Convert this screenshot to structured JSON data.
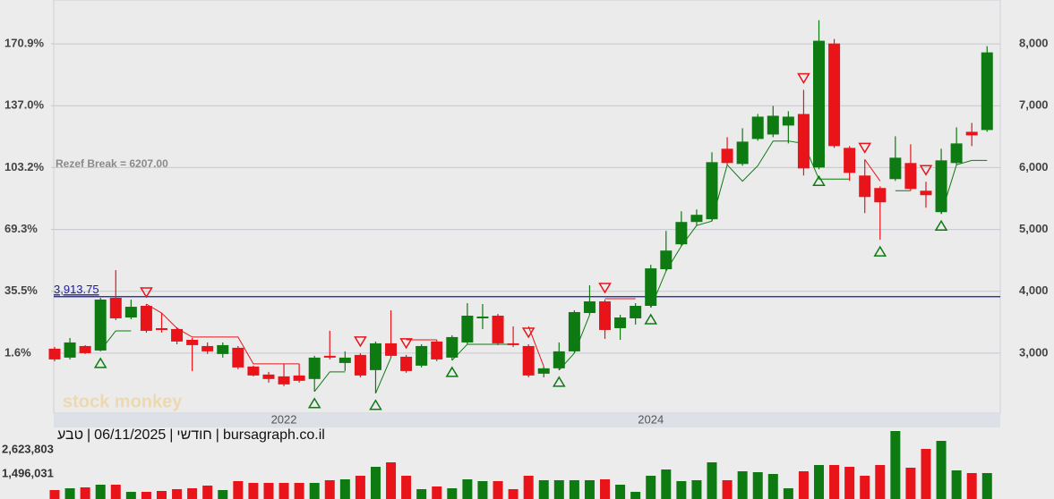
{
  "chart_data": {
    "type": "candlestick",
    "categories": [
      null,
      null,
      null,
      null,
      null,
      null,
      null,
      null,
      null,
      null,
      null,
      null,
      null,
      null,
      null,
      "2022",
      null,
      null,
      null,
      null,
      null,
      null,
      null,
      null,
      null,
      null,
      null,
      null,
      null,
      null,
      null,
      null,
      null,
      null,
      null,
      null,
      null,
      null,
      null,
      "2024",
      null,
      null,
      null,
      null,
      null,
      null,
      null,
      null,
      null,
      null,
      null,
      null,
      null,
      null,
      null,
      null,
      null,
      null,
      null,
      null,
      null,
      null
    ],
    "open": [
      3072,
      2928,
      3115,
      3043,
      3895,
      3577,
      3765,
      3404,
      3390,
      3216,
      3115,
      2986,
      3087,
      2784,
      2654,
      2625,
      2639,
      2582,
      2957,
      2841,
      2971,
      2726,
      3159,
      2942,
      2798,
      3188,
      2928,
      3173,
      3563,
      3606,
      3159,
      3115,
      2668,
      2755,
      3029,
      3649,
      3837,
      3404,
      3563,
      3765,
      4357,
      4760,
      5121,
      5165,
      6305,
      6059,
      6463,
      6535,
      6680,
      6867,
      6002,
      8007,
      6319,
      5872,
      5670,
      5814,
      6074,
      5626,
      5280,
      6074,
      6579,
      6608
    ],
    "high": [
      3101,
      3245,
      3130,
      3895,
      4342,
      3866,
      3794,
      3649,
      3419,
      3245,
      3173,
      3173,
      3115,
      2798,
      2697,
      2827,
      2827,
      2957,
      3361,
      3029,
      3000,
      3188,
      3693,
      2971,
      3144,
      3216,
      3289,
      3808,
      3794,
      3635,
      3433,
      3144,
      2784,
      3173,
      3693,
      4097,
      3866,
      3620,
      3808,
      4429,
      4977,
      5294,
      5323,
      6247,
      6492,
      6636,
      6867,
      6997,
      6911,
      7257,
      8383,
      8080,
      6348,
      6131,
      5698,
      6506,
      6377,
      5771,
      6305,
      6651,
      6723,
      7964
    ],
    "low": [
      2870,
      2899,
      2986,
      3029,
      3534,
      3548,
      3332,
      3332,
      3144,
      2711,
      2986,
      2928,
      2740,
      2625,
      2524,
      2466,
      2524,
      2380,
      2899,
      2711,
      2610,
      2351,
      2928,
      2683,
      2769,
      2870,
      2884,
      3144,
      3390,
      3130,
      3101,
      2610,
      2610,
      2726,
      3000,
      3620,
      3231,
      3216,
      3462,
      3736,
      4328,
      4732,
      5064,
      5136,
      6045,
      6030,
      6434,
      6492,
      6391,
      5872,
      5973,
      6319,
      5785,
      5265,
      4833,
      5785,
      5626,
      5352,
      5251,
      6045,
      6348,
      6579
    ],
    "close": [
      2899,
      3173,
      3000,
      3866,
      3563,
      3750,
      3361,
      3375,
      3188,
      3130,
      3029,
      3130,
      2769,
      2639,
      2582,
      2495,
      2553,
      2928,
      2928,
      2928,
      2639,
      3159,
      2957,
      2711,
      3115,
      2899,
      3260,
      3606,
      3592,
      3159,
      3130,
      2639,
      2755,
      3029,
      3664,
      3837,
      3375,
      3577,
      3765,
      4371,
      4659,
      5121,
      5237,
      6088,
      6074,
      6420,
      6824,
      6838,
      6824,
      5987,
      8051,
      6348,
      5915,
      5525,
      5439,
      6160,
      5655,
      5554,
      6117,
      6391,
      6521,
      7863
    ],
    "up_color": "#0d7a12",
    "down_color": "#e8141a",
    "ylim": [
      2030,
      8710
    ],
    "yticks": [
      {
        "value": 3000,
        "label": "3,000"
      },
      {
        "value": 4000,
        "label": "4,000"
      },
      {
        "value": 5000,
        "label": "5,000"
      },
      {
        "value": 6000,
        "label": "6,000"
      },
      {
        "value": 7000,
        "label": "7,000"
      },
      {
        "value": 8000,
        "label": "8,000"
      }
    ],
    "y2lim": [
      -31.1,
      194.8
    ],
    "y2ticks": [
      {
        "value": 1.6,
        "label": "1.6%"
      },
      {
        "value": 35.5,
        "label": "35.5%"
      },
      {
        "value": 69.3,
        "label": "69.3%"
      },
      {
        "value": 103.2,
        "label": "103.2%"
      },
      {
        "value": 137.0,
        "label": "137.0%"
      },
      {
        "value": 170.9,
        "label": "170.9%"
      }
    ],
    "grid": true,
    "reference_line": {
      "value": 3913.75,
      "label": "3,913.75",
      "color": "#1a1aa0"
    },
    "annotation": "Rezef Break = 6207.00",
    "signals": [
      null,
      null,
      null,
      "buy",
      null,
      null,
      "sell",
      null,
      null,
      null,
      null,
      null,
      null,
      null,
      null,
      null,
      null,
      "buy",
      null,
      null,
      "sell",
      "buy",
      null,
      "sell",
      null,
      null,
      "buy",
      null,
      null,
      null,
      null,
      "sell",
      null,
      "buy",
      null,
      null,
      "sell",
      null,
      null,
      "buy",
      null,
      null,
      null,
      null,
      null,
      null,
      null,
      null,
      null,
      "sell",
      "buy",
      null,
      null,
      "sell",
      "buy",
      null,
      null,
      "sell",
      "buy",
      null,
      null,
      null
    ],
    "stop_buy": [
      null,
      null,
      null,
      3043,
      3361,
      3361,
      null,
      null,
      null,
      null,
      null,
      null,
      null,
      null,
      null,
      null,
      null,
      2380,
      2697,
      2697,
      null,
      2351,
      2928,
      null,
      null,
      null,
      2884,
      3144,
      3144,
      3144,
      3144,
      null,
      null,
      2726,
      3000,
      3620,
      null,
      null,
      null,
      3736,
      4328,
      4732,
      5064,
      5136,
      6045,
      5780,
      6030,
      6430,
      6430,
      6391,
      5814,
      5814,
      5814,
      null,
      null,
      5626,
      5626,
      null,
      5251,
      6045,
      6117,
      6117
    ],
    "stop_sell": [
      null,
      null,
      null,
      null,
      null,
      null,
      3794,
      3649,
      3404,
      3260,
      3260,
      3260,
      3260,
      2827,
      2827,
      2827,
      2827,
      null,
      null,
      null,
      3000,
      null,
      null,
      3216,
      3216,
      3216,
      null,
      null,
      null,
      null,
      null,
      3433,
      2784,
      null,
      null,
      null,
      3880,
      3880,
      3880,
      null,
      null,
      null,
      null,
      null,
      null,
      null,
      null,
      null,
      null,
      null,
      null,
      null,
      null,
      6131,
      5785,
      null,
      null,
      6377,
      null,
      null,
      null,
      null
    ],
    "volume": {
      "values": [
        744000,
        828000,
        869000,
        995000,
        995000,
        661000,
        661000,
        702000,
        786000,
        828000,
        953000,
        744000,
        1162000,
        1078000,
        1078000,
        1078000,
        1078000,
        1078000,
        1204000,
        1245000,
        1412000,
        1830000,
        2039000,
        1412000,
        786000,
        911000,
        828000,
        1245000,
        1162000,
        1162000,
        786000,
        1412000,
        1204000,
        1204000,
        1204000,
        1204000,
        1245000,
        995000,
        661000,
        1412000,
        1705000,
        1162000,
        1204000,
        2039000,
        1204000,
        1621000,
        1580000,
        1496000,
        828000,
        1621000,
        1914000,
        1914000,
        1830000,
        1412000,
        1914000,
        3501000,
        1788000,
        2666000,
        3041000,
        1663000,
        1538000,
        1538000
      ],
      "ylim": [
        326500,
        3668000
      ],
      "yticks": [
        {
          "value": 1496031,
          "label": "1,496,031"
        },
        {
          "value": 2623803,
          "label": "2,623,803"
        }
      ]
    },
    "header": {
      "period": "חודשי",
      "separator": "|",
      "date": "06/11/2025",
      "symbol": "טבע",
      "source": "bursagraph.co.il"
    },
    "watermark": "stock monkey"
  }
}
